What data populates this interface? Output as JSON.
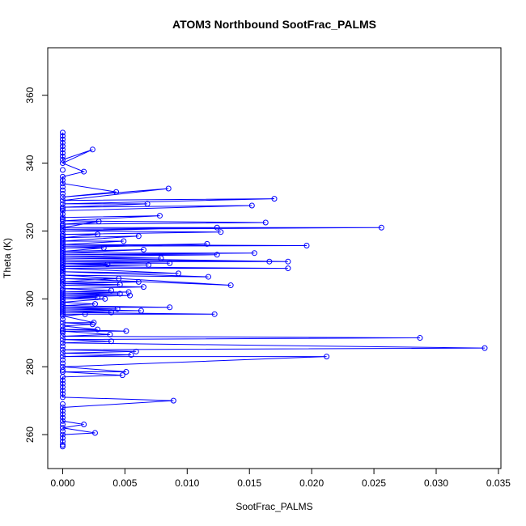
{
  "chart_data": {
    "type": "line",
    "title": "ATOM3 Northbound SootFrac_PALMS",
    "xlabel": "SootFrac_PALMS",
    "ylabel": "Theta (K)",
    "xlim": [
      -0.0012,
      0.0352
    ],
    "ylim": [
      250,
      374
    ],
    "x_ticks": [
      0.0,
      0.005,
      0.01,
      0.015,
      0.02,
      0.025,
      0.03,
      0.035
    ],
    "x_tick_labels": [
      "0.000",
      "0.005",
      "0.010",
      "0.015",
      "0.020",
      "0.025",
      "0.030",
      "0.035"
    ],
    "y_ticks": [
      260,
      280,
      300,
      320,
      340,
      360
    ],
    "y_tick_labels": [
      "260",
      "280",
      "300",
      "320",
      "340",
      "360"
    ],
    "grid": false,
    "series": [
      {
        "color": "#0000ff",
        "marker": "open-circle",
        "points": [
          [
            0.0,
            349
          ],
          [
            0.0,
            347
          ],
          [
            0.0,
            345
          ],
          [
            0.0,
            343
          ],
          [
            0.0,
            341
          ],
          [
            0.0024,
            344
          ],
          [
            0.0,
            340
          ],
          [
            0.0017,
            337.5
          ],
          [
            0.0,
            336
          ],
          [
            0.0,
            334
          ],
          [
            0.0043,
            331.5
          ],
          [
            0.0,
            330
          ],
          [
            0.0085,
            332.5
          ],
          [
            0.0,
            329
          ],
          [
            0.017,
            329.5
          ],
          [
            0.0,
            328
          ],
          [
            0.0068,
            328
          ],
          [
            0.0,
            327
          ],
          [
            0.0152,
            327.5
          ],
          [
            0.0,
            326
          ],
          [
            0.0,
            324
          ],
          [
            0.0078,
            324.5
          ],
          [
            0.0,
            323
          ],
          [
            0.0163,
            322.5
          ],
          [
            0.0,
            322
          ],
          [
            0.0029,
            322.8
          ],
          [
            0.0,
            321
          ],
          [
            0.0256,
            321
          ],
          [
            0.0,
            320.5
          ],
          [
            0.0124,
            321
          ],
          [
            0.0,
            320
          ],
          [
            0.0127,
            319.7
          ],
          [
            0.0,
            319
          ],
          [
            0.0028,
            319
          ],
          [
            0.0,
            318
          ],
          [
            0.0061,
            318.5
          ],
          [
            0.0,
            317
          ],
          [
            0.0049,
            317
          ],
          [
            0.0,
            316
          ],
          [
            0.0196,
            315.7
          ],
          [
            0.0,
            315.5
          ],
          [
            0.0116,
            316.2
          ],
          [
            0.0,
            315
          ],
          [
            0.0033,
            315
          ],
          [
            0.0,
            314
          ],
          [
            0.0065,
            314.5
          ],
          [
            0.0,
            313.5
          ],
          [
            0.0154,
            313.5
          ],
          [
            0.0,
            313
          ],
          [
            0.0124,
            313
          ],
          [
            0.0,
            312.5
          ],
          [
            0.0079,
            312
          ],
          [
            0.0,
            312
          ],
          [
            0.0181,
            311
          ],
          [
            0.0,
            311.5
          ],
          [
            0.0166,
            311
          ],
          [
            0.0,
            311
          ],
          [
            0.0086,
            310.5
          ],
          [
            0.0,
            310.5
          ],
          [
            0.0036,
            310.2
          ],
          [
            0.0,
            310
          ],
          [
            0.0069,
            310
          ],
          [
            0.0,
            309.5
          ],
          [
            0.0181,
            309
          ],
          [
            0.0,
            309
          ],
          [
            0.0093,
            307.5
          ],
          [
            0.0,
            308
          ],
          [
            0.0117,
            306.5
          ],
          [
            0.0,
            307
          ],
          [
            0.0135,
            304
          ],
          [
            0.0,
            306
          ],
          [
            0.0045,
            306
          ],
          [
            0.0,
            305
          ],
          [
            0.0061,
            305
          ],
          [
            0.0,
            304.5
          ],
          [
            0.0046,
            304.2
          ],
          [
            0.0,
            304
          ],
          [
            0.0065,
            303.5
          ],
          [
            0.0,
            303
          ],
          [
            0.0039,
            302.5
          ],
          [
            0.0,
            302
          ],
          [
            0.0053,
            302
          ],
          [
            0.0,
            301.5
          ],
          [
            0.0046,
            301.5
          ],
          [
            0.0,
            301
          ],
          [
            0.0054,
            301
          ],
          [
            0.0,
            300.5
          ],
          [
            0.0028,
            300.5
          ],
          [
            0.0,
            300
          ],
          [
            0.0034,
            300
          ],
          [
            0.0,
            299
          ],
          [
            0.0026,
            298.5
          ],
          [
            0.0,
            298
          ],
          [
            0.0086,
            297.5
          ],
          [
            0.0,
            297.5
          ],
          [
            0.0044,
            297
          ],
          [
            0.0,
            297
          ],
          [
            0.0063,
            296.5
          ],
          [
            0.0,
            296.5
          ],
          [
            0.0039,
            296
          ],
          [
            0.0,
            296
          ],
          [
            0.0122,
            295.5
          ],
          [
            0.0,
            295.5
          ],
          [
            0.0018,
            295.5
          ],
          [
            0.0,
            295
          ],
          [
            0.0025,
            293
          ],
          [
            0.0,
            293
          ],
          [
            0.0024,
            292.5
          ],
          [
            0.0,
            292
          ],
          [
            0.0028,
            291
          ],
          [
            0.0,
            291
          ],
          [
            0.0051,
            290.5
          ],
          [
            0.0,
            290.5
          ],
          [
            0.0038,
            289.5
          ],
          [
            0.0,
            289
          ],
          [
            0.0287,
            288.5
          ],
          [
            0.0,
            288
          ],
          [
            0.0039,
            287.5
          ],
          [
            0.0,
            287
          ],
          [
            0.0339,
            285.5
          ],
          [
            0.0,
            285
          ],
          [
            0.0059,
            284.5
          ],
          [
            0.0,
            284
          ],
          [
            0.0055,
            283.5
          ],
          [
            0.0,
            283
          ],
          [
            0.0212,
            283
          ],
          [
            0.0,
            280
          ],
          [
            0.0051,
            278.5
          ],
          [
            0.0,
            278.5
          ],
          [
            0.0048,
            277.5
          ],
          [
            0.0,
            277
          ],
          [
            0.0,
            275
          ],
          [
            0.0,
            273
          ],
          [
            0.0,
            271
          ],
          [
            0.0089,
            270
          ],
          [
            0.0,
            268
          ],
          [
            0.0,
            266
          ],
          [
            0.0,
            264
          ],
          [
            0.0017,
            263
          ],
          [
            0.0,
            262
          ],
          [
            0.0026,
            260.5
          ],
          [
            0.0,
            260
          ],
          [
            0.0,
            258
          ],
          [
            0.0,
            257
          ]
        ]
      }
    ],
    "extra_points_at_zero": [
      348,
      346,
      344,
      342,
      338,
      335,
      333,
      332,
      331,
      326.5,
      325,
      323.5,
      321.5,
      318.5,
      317.5,
      316.5,
      314.5,
      309.2,
      308.5,
      307.5,
      305.5,
      302.5,
      299.5,
      298.5,
      294,
      290,
      286,
      282,
      281,
      279,
      276,
      274,
      272,
      269,
      267,
      265,
      263,
      261,
      259,
      256.5
    ]
  }
}
